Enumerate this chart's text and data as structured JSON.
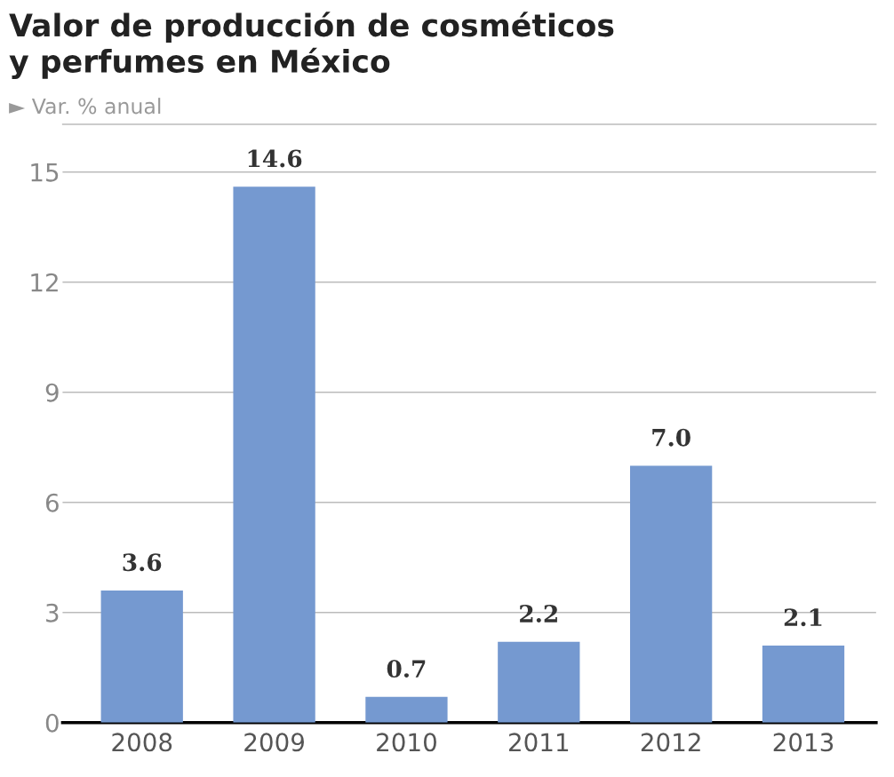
{
  "chart_data": {
    "type": "bar",
    "title": "Valor de producción de cosméticos\ny perfumes en México",
    "subtitle": "► Var. % anual",
    "categories": [
      "2008",
      "2009",
      "2010",
      "2011",
      "2012",
      "2013"
    ],
    "values": [
      3.6,
      14.6,
      0.7,
      2.2,
      7.0,
      2.1
    ],
    "value_labels": [
      "3.6",
      "14.6",
      "0.7",
      "2.2",
      "7.0",
      "2.1"
    ],
    "color": "#7599d0",
    "ylim": [
      0,
      16.3
    ],
    "yticks": [
      0,
      3,
      6,
      9,
      12,
      15
    ],
    "grid": "y"
  }
}
